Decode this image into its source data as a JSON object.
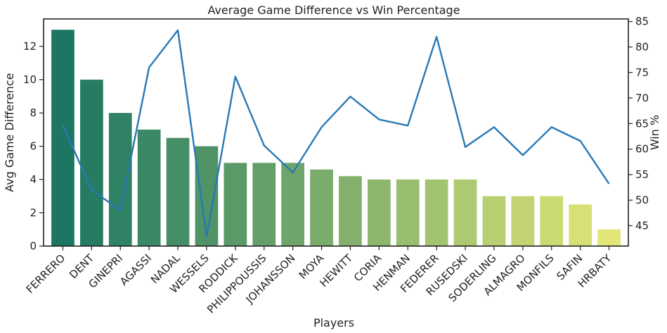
{
  "chart_data": {
    "type": "bar",
    "title": "Average Game Difference vs Win Percentage",
    "xlabel": "Players",
    "ylabel": "Avg Game Difference",
    "y2label": "Win %",
    "categories": [
      "FERRERO",
      "DENT",
      "GINEPRI",
      "AGASSI",
      "NADAL",
      "WESSELS",
      "RODDICK",
      "PHILIPPOUSSIS",
      "JOHANSSON",
      "MOYA",
      "HEWITT",
      "CORIA",
      "HENMAN",
      "FEDERER",
      "RUSEDSKI",
      "SODERLING",
      "ALMAGRO",
      "MONFILS",
      "SAFIN",
      "HRBATY"
    ],
    "series": [
      {
        "type": "bar",
        "axis": "left",
        "values": [
          13,
          10,
          8,
          7,
          6.5,
          6,
          5,
          5,
          5,
          4.6,
          4.2,
          4,
          4,
          4,
          4,
          3,
          3,
          3,
          2.5,
          1
        ]
      },
      {
        "type": "line",
        "axis": "right",
        "color": "#2878b5",
        "values": [
          64.7,
          52.0,
          48.0,
          76.0,
          83.3,
          42.9,
          74.2,
          60.7,
          55.4,
          64.3,
          70.3,
          65.8,
          64.6,
          82.0,
          60.4,
          64.3,
          58.8,
          64.3,
          61.6,
          53.2
        ]
      }
    ],
    "ylim": [
      0,
      13.65
    ],
    "y2lim": [
      41.0,
      85.5
    ],
    "yticks": [
      0,
      2,
      4,
      6,
      8,
      10,
      12
    ],
    "y2ticks": [
      45,
      50,
      55,
      60,
      65,
      70,
      75,
      80,
      85
    ],
    "grid": false,
    "bar_palette": "summer_r"
  }
}
